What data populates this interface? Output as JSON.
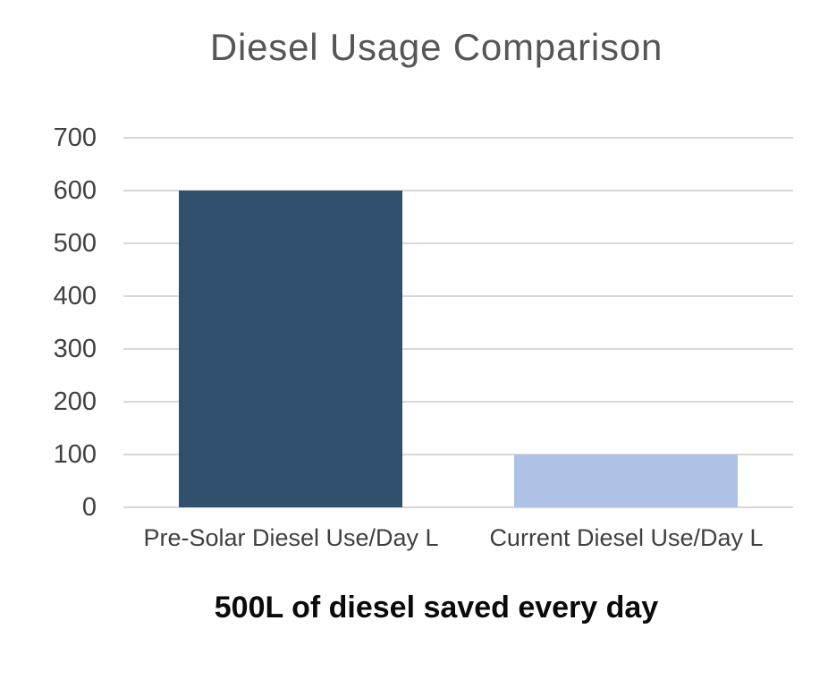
{
  "chart_data": {
    "type": "bar",
    "title": "Diesel Usage Comparison",
    "caption": "500L of diesel saved every day",
    "categories": [
      "Pre-Solar Diesel Use/Day L",
      "Current Diesel Use/Day L"
    ],
    "values": [
      600,
      100
    ],
    "bar_colors": [
      "#30506E",
      "#ADC2E4"
    ],
    "ylim": [
      0,
      700
    ],
    "ytick_interval": 100,
    "ytick_labels": [
      "0",
      "100",
      "200",
      "300",
      "400",
      "500",
      "600",
      "700"
    ],
    "xlabel": "",
    "ylabel": "",
    "grid": "horizontal",
    "legend": "none"
  },
  "colors": {
    "background": "#FFFFFF",
    "title_text": "#565656",
    "axis_text": "#404040",
    "gridline": "#D8D8D8",
    "caption_text": "#0A0A0A"
  }
}
